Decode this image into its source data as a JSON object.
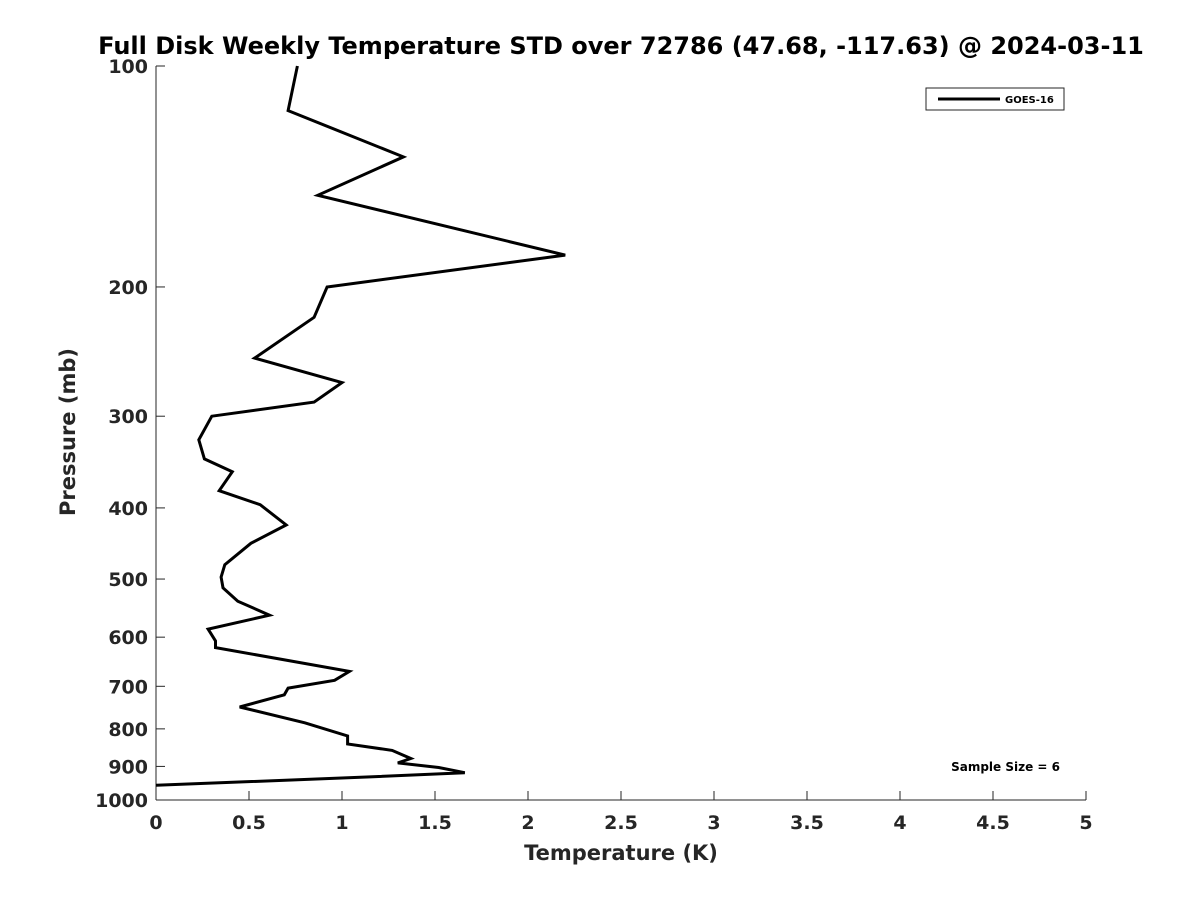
{
  "chart_data": {
    "type": "line",
    "title": "Full Disk Weekly Temperature STD over 72786 (47.68, -117.63) @ 2024-03-11",
    "xlabel": "Temperature (K)",
    "ylabel": "Pressure (mb)",
    "xlim": [
      0,
      5
    ],
    "ylim": [
      100,
      1000
    ],
    "y_scale": "log",
    "y_reversed": true,
    "grid": false,
    "legend_position": "top-right",
    "x_ticks": [
      "0",
      "0.5",
      "1",
      "1.5",
      "2",
      "2.5",
      "3",
      "3.5",
      "4",
      "4.5",
      "5"
    ],
    "y_ticks": [
      "100",
      "200",
      "300",
      "400",
      "500",
      "600",
      "700",
      "800",
      "900",
      "1000"
    ],
    "annotation": "Sample Size = 6",
    "series": [
      {
        "name": "GOES-16",
        "color": "#000000",
        "x": [
          0.76,
          0.71,
          1.33,
          0.87,
          2.2,
          0.92,
          0.85,
          0.53,
          1.0,
          0.85,
          0.3,
          0.23,
          0.26,
          0.41,
          0.34,
          0.56,
          0.7,
          0.51,
          0.37,
          0.35,
          0.36,
          0.44,
          0.61,
          0.28,
          0.32,
          0.32,
          1.04,
          0.96,
          0.71,
          0.69,
          0.45,
          0.8,
          1.03,
          1.03,
          1.27,
          1.37,
          1.3,
          1.52,
          1.66,
          1.15,
          0.0
        ],
        "y": [
          100,
          115,
          133,
          150,
          181,
          200,
          220,
          250,
          270,
          287,
          300,
          323,
          343,
          357,
          379,
          396,
          422,
          447,
          478,
          497,
          514,
          536,
          560,
          585,
          607,
          620,
          668,
          687,
          704,
          719,
          747,
          785,
          818,
          839,
          856,
          878,
          890,
          903,
          918,
          930,
          955
        ]
      }
    ]
  }
}
